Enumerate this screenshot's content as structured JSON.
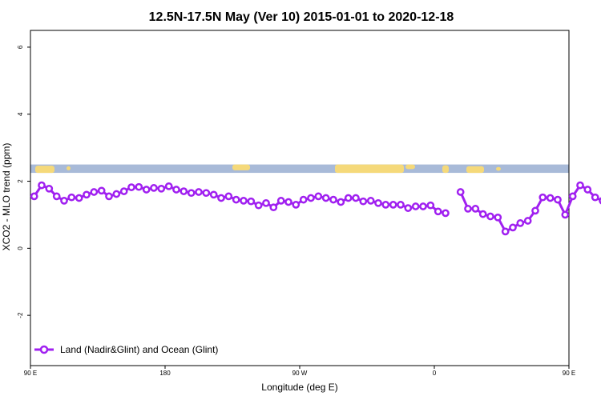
{
  "chart_data": {
    "type": "line",
    "title": "12.5N-17.5N May (Ver 10)   2015-01-01 to 2020-12-18",
    "xlabel": "Longitude (deg E)",
    "ylabel": "XCO2 - MLO trend (ppm)",
    "xlim": [
      90,
      450
    ],
    "ylim": [
      -3.5,
      6.5
    ],
    "x_ticks": [
      90,
      180,
      270,
      360,
      450,
      540
    ],
    "x_tick_labels": [
      "90 E",
      "180",
      "90 W",
      "0",
      "90 E",
      "180"
    ],
    "y_ticks": [
      -2,
      0,
      2,
      4,
      6
    ],
    "y_tick_labels": [
      "-2",
      "0",
      "2",
      "4",
      "6"
    ],
    "legend": {
      "position": "bottom-left"
    },
    "colors": {
      "series": "#a020f0",
      "ocean_strip": "#a8bad8",
      "land_strip": "#f5d97a"
    },
    "map_strip": {
      "y_range": [
        2.25,
        2.5
      ]
    },
    "series": [
      {
        "name": "Land (Nadir&Glint) and Ocean (Glint)",
        "segments": [
          {
            "x": [
              92.5,
              97.5,
              102.5,
              107.5,
              112.5,
              117.5,
              122.5,
              127.5,
              132.5,
              137.5,
              142.5,
              147.5,
              152.5,
              157.5,
              162.5,
              167.5,
              172.5,
              177.5,
              182.5,
              187.5,
              192.5,
              197.5,
              202.5,
              207.5,
              212.5,
              217.5,
              222.5,
              227.5,
              232.5,
              237.5,
              242.5,
              247.5,
              252.5,
              257.5,
              262.5,
              267.5,
              272.5,
              277.5,
              282.5,
              287.5,
              292.5,
              297.5,
              302.5,
              307.5,
              312.5,
              317.5,
              322.5,
              327.5,
              332.5,
              337.5,
              342.5,
              347.5,
              352.5,
              357.5,
              362.5,
              367.5
            ],
            "y": [
              1.55,
              1.88,
              1.78,
              1.55,
              1.42,
              1.52,
              1.5,
              1.6,
              1.68,
              1.72,
              1.55,
              1.62,
              1.7,
              1.82,
              1.83,
              1.75,
              1.8,
              1.78,
              1.85,
              1.75,
              1.7,
              1.65,
              1.68,
              1.65,
              1.6,
              1.5,
              1.55,
              1.45,
              1.42,
              1.4,
              1.28,
              1.35,
              1.22,
              1.42,
              1.38,
              1.3,
              1.45,
              1.5,
              1.55,
              1.5,
              1.45,
              1.38,
              1.5,
              1.5,
              1.4,
              1.42,
              1.35,
              1.3,
              1.3,
              1.3,
              1.2,
              1.25,
              1.25,
              1.28,
              1.1,
              1.05
            ]
          },
          {
            "x": [
              377.5,
              382.5,
              387.5,
              392.5,
              397.5,
              402.5,
              407.5,
              412.5,
              417.5,
              422.5,
              427.5,
              432.5,
              437.5,
              442.5,
              447.5,
              452.5,
              457.5,
              462.5,
              467.5,
              472.5,
              477.5,
              482.5,
              487.5,
              492.5,
              497.5,
              502.5,
              507.5,
              512.5,
              517.5,
              522.5,
              527.5,
              532.5,
              537.5,
              542.5,
              547.5
            ],
            "y": [
              1.68,
              1.18,
              1.18,
              1.02,
              0.95,
              0.92,
              0.5,
              0.62,
              0.75,
              0.82,
              1.12,
              1.52,
              1.5,
              1.45,
              1.0,
              1.55,
              1.88,
              1.75,
              1.52,
              1.42,
              1.52,
              1.5,
              1.62,
              1.68,
              1.72,
              1.55,
              1.62,
              1.7,
              1.82,
              1.85,
              1.75,
              1.8,
              1.78,
              1.75,
              1.75
            ]
          }
        ]
      }
    ]
  }
}
